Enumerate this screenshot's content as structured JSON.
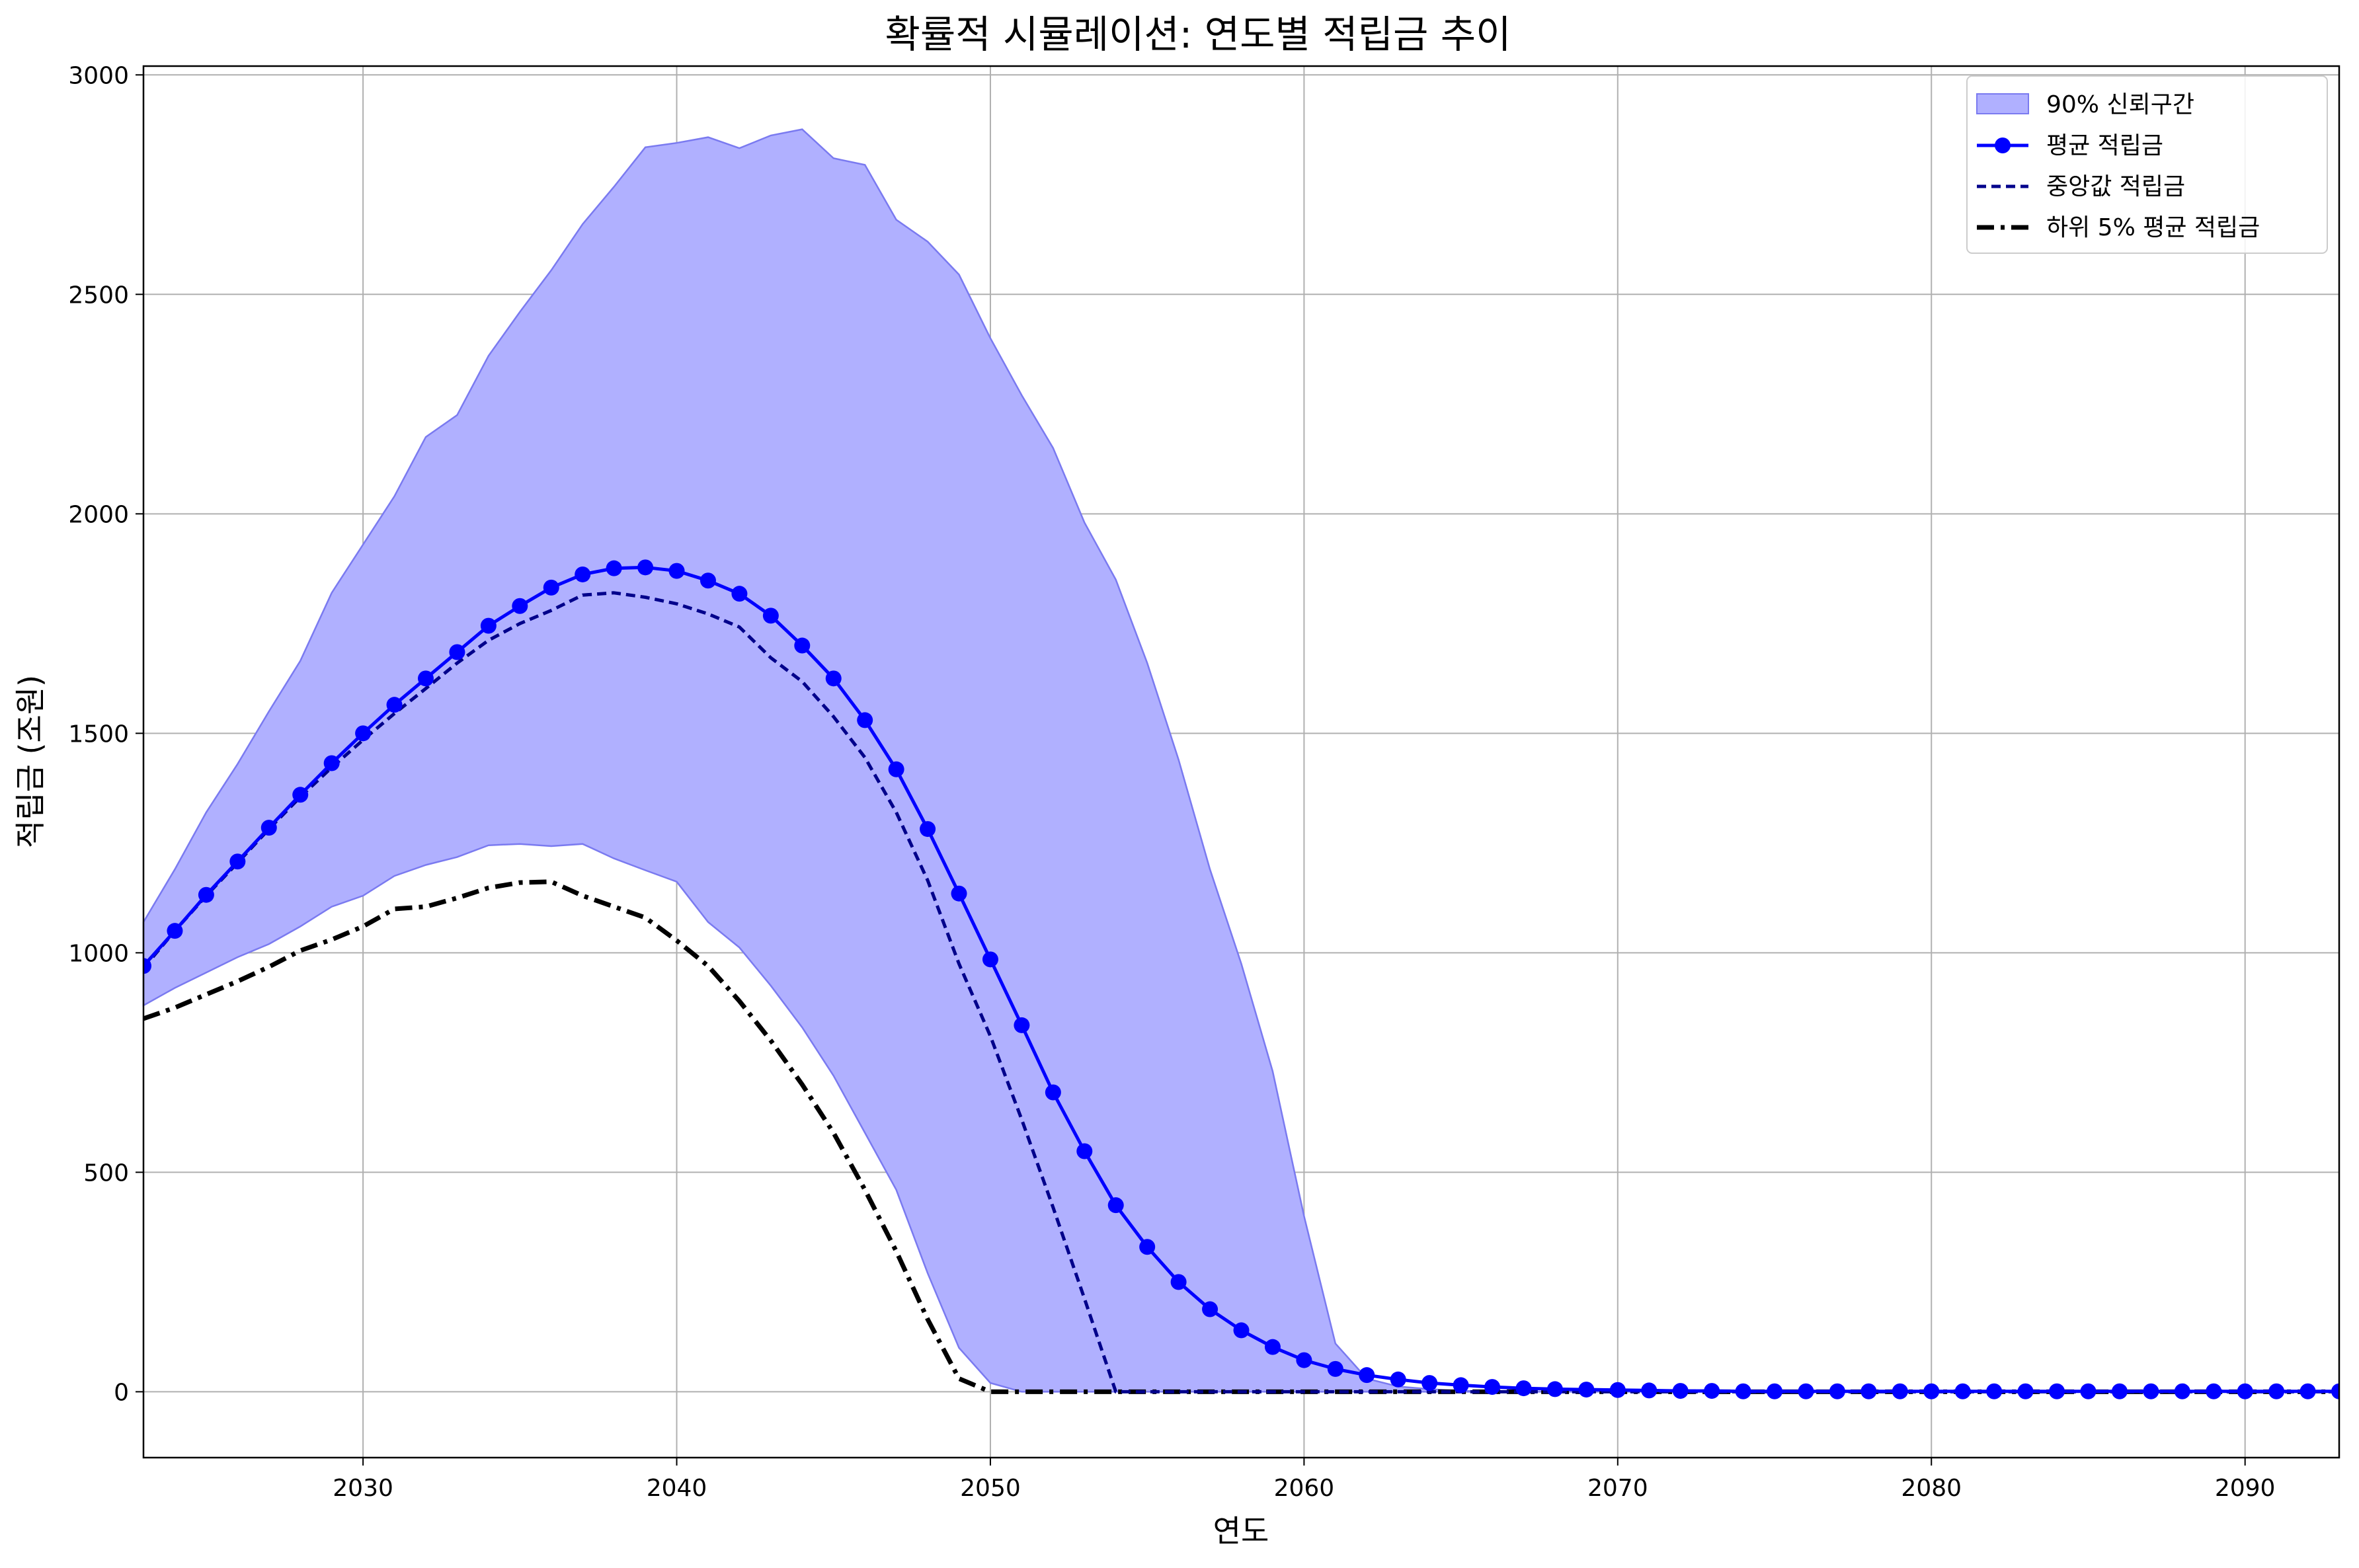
{
  "chart_data": {
    "type": "line",
    "title": "확률적 시뮬레이션: 연도별 적립금 추이",
    "xlabel": "연도",
    "ylabel": "적립금 (조원)",
    "xlim": [
      2023,
      2093
    ],
    "ylim": [
      -150,
      3020
    ],
    "x_ticks": [
      2030,
      2040,
      2050,
      2060,
      2070,
      2080,
      2090
    ],
    "y_ticks": [
      0,
      500,
      1000,
      1500,
      2000,
      2500,
      3000
    ],
    "grid": true,
    "legend_position": "top-right",
    "x": [
      2023,
      2024,
      2025,
      2026,
      2027,
      2028,
      2029,
      2030,
      2031,
      2032,
      2033,
      2034,
      2035,
      2036,
      2037,
      2038,
      2039,
      2040,
      2041,
      2042,
      2043,
      2044,
      2045,
      2046,
      2047,
      2048,
      2049,
      2050,
      2051,
      2052,
      2053,
      2054,
      2055,
      2056,
      2057,
      2058,
      2059,
      2060,
      2061,
      2062,
      2063,
      2064,
      2065,
      2066,
      2067,
      2068,
      2069,
      2070,
      2071,
      2072,
      2073,
      2074,
      2075,
      2076,
      2077,
      2078,
      2079,
      2080,
      2081,
      2082,
      2083,
      2084,
      2085,
      2086,
      2087,
      2088,
      2089,
      2090,
      2091,
      2092,
      2093
    ],
    "band": {
      "name": "90% 신뢰구간",
      "color": "#b0b0ff",
      "edge_color": "#7a7af0",
      "upper": [
        1070,
        1190,
        1320,
        1430,
        1550,
        1665,
        1820,
        1930,
        2040,
        2175,
        2225,
        2360,
        2460,
        2555,
        2660,
        2745,
        2835,
        2845,
        2858,
        2833,
        2862,
        2876,
        2810,
        2795,
        2670,
        2620,
        2545,
        2400,
        2270,
        2150,
        1980,
        1850,
        1660,
        1440,
        1190,
        975,
        730,
        400,
        110,
        30,
        12,
        6,
        2,
        1,
        0,
        0,
        0,
        0,
        0,
        0,
        0,
        0,
        0,
        0,
        0,
        0,
        0,
        0,
        0,
        0,
        0,
        0,
        0,
        0,
        0,
        0,
        0,
        0,
        0,
        0,
        0
      ],
      "lower": [
        880,
        920,
        955,
        990,
        1020,
        1060,
        1105,
        1130,
        1175,
        1200,
        1218,
        1245,
        1248,
        1243,
        1248,
        1215,
        1188,
        1162,
        1070,
        1012,
        925,
        830,
        720,
        590,
        460,
        270,
        100,
        20,
        0,
        0,
        0,
        0,
        0,
        0,
        0,
        0,
        0,
        0,
        0,
        0,
        0,
        0,
        0,
        0,
        0,
        0,
        0,
        0,
        0,
        0,
        0,
        0,
        0,
        0,
        0,
        0,
        0,
        0,
        0,
        0,
        0,
        0,
        0,
        0,
        0,
        0,
        0,
        0,
        0,
        0,
        0
      ]
    },
    "series": [
      {
        "name": "평균 적립금",
        "style": "solid-marker",
        "color": "#0000ff",
        "values": [
          970,
          1050,
          1132,
          1208,
          1285,
          1360,
          1432,
          1500,
          1565,
          1625,
          1685,
          1745,
          1790,
          1832,
          1862,
          1876,
          1878,
          1870,
          1848,
          1818,
          1768,
          1700,
          1625,
          1530,
          1418,
          1282,
          1135,
          985,
          835,
          682,
          548,
          425,
          330,
          250,
          188,
          140,
          102,
          72,
          52,
          38,
          28,
          20,
          15,
          11,
          8,
          6,
          5,
          4,
          3,
          2,
          2,
          1,
          1,
          1,
          1,
          1,
          1,
          1,
          1,
          1,
          1,
          1,
          1,
          1,
          1,
          1,
          1,
          1,
          1,
          1,
          1
        ]
      },
      {
        "name": "중앙값 적립금",
        "style": "dashed",
        "color": "#00008b",
        "values": [
          965,
          1050,
          1130,
          1205,
          1282,
          1355,
          1422,
          1485,
          1545,
          1602,
          1660,
          1712,
          1750,
          1780,
          1815,
          1820,
          1810,
          1795,
          1772,
          1742,
          1672,
          1618,
          1538,
          1445,
          1320,
          1165,
          975,
          810,
          620,
          420,
          212,
          0,
          0,
          0,
          0,
          0,
          0,
          0,
          0,
          0,
          0,
          0,
          0,
          0,
          0,
          0,
          0,
          0,
          0,
          0,
          0,
          0,
          0,
          0,
          0,
          0,
          0,
          0,
          0,
          0,
          0,
          0,
          0,
          0,
          0,
          0,
          0,
          0,
          0,
          0,
          0
        ]
      },
      {
        "name": "하위 5% 평균 적립금",
        "style": "dashdot",
        "color": "#000000",
        "values": [
          850,
          875,
          905,
          935,
          968,
          1005,
          1030,
          1060,
          1100,
          1105,
          1125,
          1148,
          1160,
          1162,
          1130,
          1105,
          1080,
          1028,
          970,
          890,
          800,
          700,
          590,
          460,
          320,
          165,
          30,
          0,
          0,
          0,
          0,
          0,
          0,
          0,
          0,
          0,
          0,
          0,
          0,
          0,
          0,
          0,
          0,
          0,
          0,
          0,
          0,
          0,
          0,
          0,
          0,
          0,
          0,
          0,
          0,
          0,
          0,
          0,
          0,
          0,
          0,
          0,
          0,
          0,
          0,
          0,
          0,
          0,
          0,
          0,
          0
        ]
      }
    ]
  }
}
